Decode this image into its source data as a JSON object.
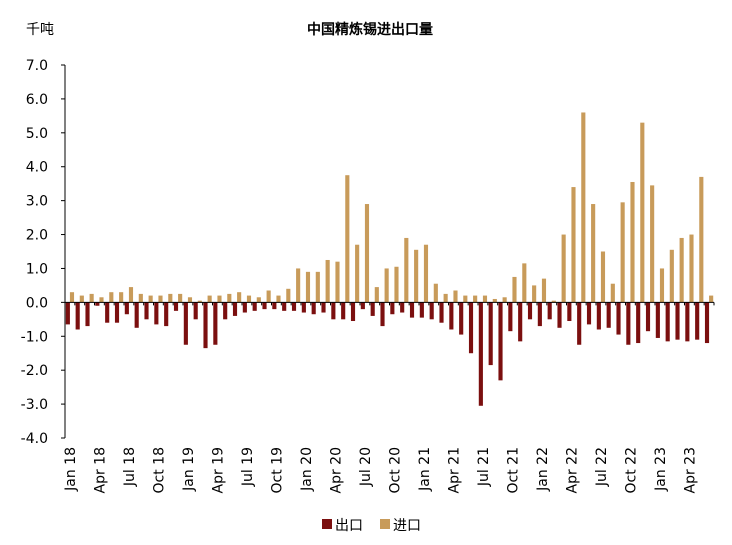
{
  "chart_data": {
    "type": "bar",
    "title": "中国精炼锡进出口量",
    "ylabel": "千吨",
    "xlabel": "",
    "ylim": [
      -4.0,
      7.0
    ],
    "yticks": [
      "7.0",
      "6.0",
      "5.0",
      "4.0",
      "3.0",
      "2.0",
      "1.0",
      "0.0",
      "-1.0",
      "-2.0",
      "-3.0",
      "-4.0"
    ],
    "categories": [
      "Jan 18",
      "Feb 18",
      "Mar 18",
      "Apr 18",
      "May 18",
      "Jun 18",
      "Jul 18",
      "Aug 18",
      "Sep 18",
      "Oct 18",
      "Nov 18",
      "Dec 18",
      "Jan 19",
      "Feb 19",
      "Mar 19",
      "Apr 19",
      "May 19",
      "Jun 19",
      "Jul 19",
      "Aug 19",
      "Sep 19",
      "Oct 19",
      "Nov 19",
      "Dec 19",
      "Jan 20",
      "Feb 20",
      "Mar 20",
      "Apr 20",
      "May 20",
      "Jun 20",
      "Jul 20",
      "Aug 20",
      "Sep 20",
      "Oct 20",
      "Nov 20",
      "Dec 20",
      "Jan 21",
      "Feb 21",
      "Mar 21",
      "Apr 21",
      "May 21",
      "Jun 21",
      "Jul 21",
      "Aug 21",
      "Sep 21",
      "Oct 21",
      "Nov 21",
      "Dec 21",
      "Jan 22",
      "Feb 22",
      "Mar 22",
      "Apr 22",
      "May 22",
      "Jun 22",
      "Jul 22",
      "Aug 22",
      "Sep 22",
      "Oct 22",
      "Nov 22",
      "Dec 22",
      "Jan 23",
      "Feb 23",
      "Mar 23",
      "Apr 23",
      "May 23",
      "Jun 23"
    ],
    "tick_labels": [
      "Jan 18",
      "Apr 18",
      "Jul 18",
      "Oct 18",
      "Jan 19",
      "Apr 19",
      "Jul 19",
      "Oct 19",
      "Jan 20",
      "Apr 20",
      "Jul 20",
      "Oct 20",
      "Jan 21",
      "Apr 21",
      "Jul 21",
      "Oct 21",
      "Jan 22",
      "Apr 22",
      "Jul 22",
      "Oct 22",
      "Jan 23",
      "Apr 23"
    ],
    "tick_every": 3,
    "series": [
      {
        "name": "出口",
        "color": "#7B0F0F",
        "values": [
          -0.65,
          -0.8,
          -0.7,
          -0.1,
          -0.6,
          -0.6,
          -0.35,
          -0.75,
          -0.5,
          -0.65,
          -0.7,
          -0.25,
          -1.25,
          -0.5,
          -1.35,
          -1.25,
          -0.5,
          -0.4,
          -0.3,
          -0.25,
          -0.2,
          -0.2,
          -0.25,
          -0.25,
          -0.3,
          -0.35,
          -0.3,
          -0.5,
          -0.5,
          -0.55,
          -0.2,
          -0.4,
          -0.7,
          -0.35,
          -0.3,
          -0.45,
          -0.45,
          -0.5,
          -0.6,
          -0.8,
          -0.95,
          -1.5,
          -3.05,
          -1.85,
          -2.3,
          -0.85,
          -1.15,
          -0.5,
          -0.7,
          -0.5,
          -0.75,
          -0.55,
          -1.25,
          -0.65,
          -0.8,
          -0.75,
          -0.95,
          -1.25,
          -1.2,
          -0.85,
          -1.05,
          -1.15,
          -1.1,
          -1.15,
          -1.1,
          -1.2
        ]
      },
      {
        "name": "进口",
        "color": "#C89B5A",
        "values": [
          0.3,
          0.2,
          0.25,
          0.15,
          0.3,
          0.3,
          0.45,
          0.25,
          0.2,
          0.2,
          0.25,
          0.25,
          0.15,
          0.05,
          0.2,
          0.2,
          0.25,
          0.3,
          0.2,
          0.15,
          0.35,
          0.2,
          0.4,
          1.0,
          0.9,
          0.9,
          1.25,
          1.2,
          3.75,
          1.7,
          2.9,
          0.45,
          1.0,
          1.05,
          1.9,
          1.55,
          1.7,
          0.55,
          0.25,
          0.35,
          0.2,
          0.2,
          0.2,
          0.1,
          0.15,
          0.75,
          1.15,
          0.5,
          0.7,
          0.05,
          2.0,
          3.4,
          5.6,
          2.9,
          1.5,
          0.55,
          2.95,
          3.55,
          5.3,
          3.45,
          1.0,
          1.55,
          1.9,
          2.0,
          3.7,
          0.2
        ]
      }
    ],
    "legend": [
      "出口",
      "进口"
    ],
    "legend_position": "bottom-center",
    "grid": false
  }
}
